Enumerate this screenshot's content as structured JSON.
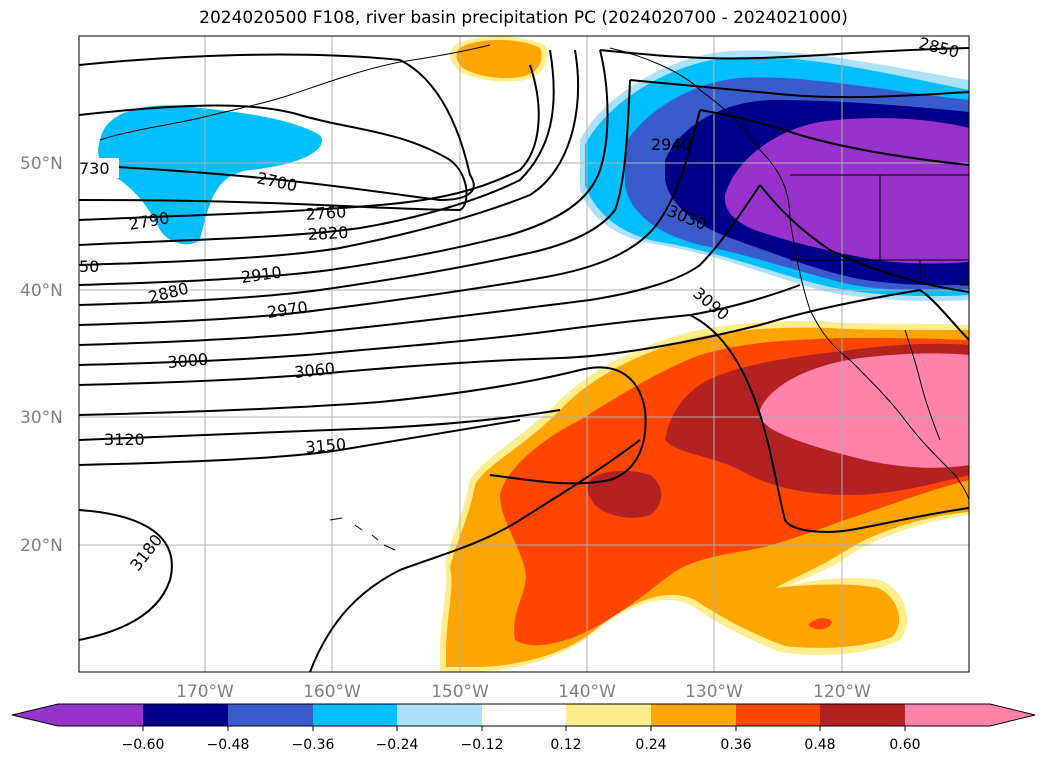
{
  "title": "2024020500 F108, river basin precipitation PC (2024020700 - 2024021000)",
  "colors": {
    "neg_060": "#9932CC",
    "neg_048": "#00008B",
    "neg_036": "#3A5BCC",
    "neg_024": "#00BFFF",
    "neg_012": "#ADE0FA",
    "neutral": "#FFFFFF",
    "pos_012": "#FFEC8B",
    "pos_024": "#FFA500",
    "pos_036": "#FF4500",
    "pos_048": "#B22222",
    "pos_060": "#FF82AB"
  },
  "map": {
    "lat_labels": [
      "50°N",
      "40°N",
      "30°N",
      "20°N"
    ],
    "lon_labels": [
      "170°W",
      "160°W",
      "150°W",
      "140°W",
      "130°W",
      "120°W"
    ],
    "contour_labels": [
      "730",
      "2700",
      "2790",
      "2760",
      "2820",
      "50",
      "2910",
      "2880",
      "2970",
      "3000",
      "3060",
      "3120",
      "3150",
      "3180",
      "2940",
      "3030",
      "3090",
      "2850"
    ]
  },
  "colorbar": {
    "ticks": [
      "−0.60",
      "−0.48",
      "−0.36",
      "−0.24",
      "−0.12",
      "0.12",
      "0.24",
      "0.36",
      "0.48",
      "0.60"
    ]
  }
}
